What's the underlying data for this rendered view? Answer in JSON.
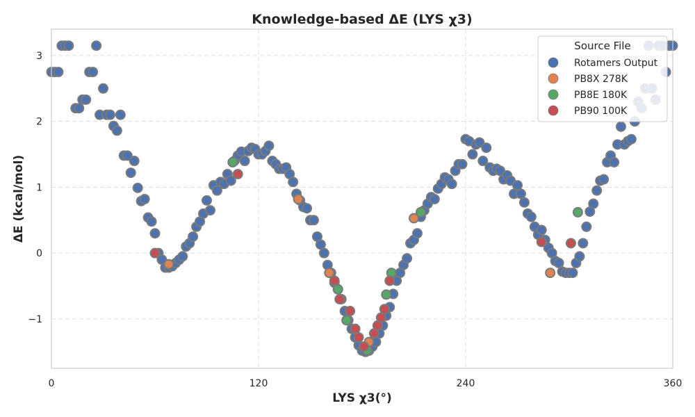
{
  "chart_data": {
    "type": "scatter",
    "title": "Knowledge-based ΔE (LYS χ3)",
    "xlabel": "LYS χ3(°)",
    "ylabel": "ΔE (kcal/mol)",
    "xlim": [
      0,
      360
    ],
    "ylim": [
      -1.75,
      3.4
    ],
    "xticks": [
      0,
      120,
      240,
      360
    ],
    "yticks": [
      -1,
      0,
      1,
      2,
      3
    ],
    "ytick_labels": [
      "−1",
      "0",
      "1",
      "2",
      "3"
    ],
    "grid": true,
    "legend": {
      "title": "Source File",
      "position": "top-right"
    },
    "marker_edge_color": "#7a7a7a",
    "series": [
      {
        "name": "Rotamers Output",
        "color": "#4c72b0",
        "x": [
          0,
          2,
          4,
          6,
          8,
          10,
          14,
          16,
          18,
          20,
          22,
          24,
          26,
          28,
          30,
          32,
          34,
          36,
          38,
          40,
          42,
          44,
          46,
          48,
          50,
          52,
          54,
          56,
          58,
          60,
          62,
          64,
          66,
          68,
          70,
          72,
          74,
          76,
          78,
          80,
          82,
          84,
          86,
          88,
          90,
          92,
          94,
          96,
          98,
          100,
          102,
          104,
          106,
          108,
          110,
          112,
          114,
          116,
          118,
          120,
          122,
          124,
          126,
          128,
          130,
          132,
          134,
          136,
          138,
          140,
          142,
          144,
          146,
          148,
          150,
          152,
          154,
          156,
          158,
          160,
          162,
          164,
          166,
          168,
          170,
          172,
          174,
          176,
          178,
          180,
          182,
          184,
          186,
          188,
          190,
          192,
          194,
          196,
          198,
          200,
          202,
          204,
          206,
          208,
          210,
          212,
          214,
          216,
          218,
          220,
          222,
          224,
          226,
          228,
          230,
          232,
          234,
          236,
          238,
          240,
          242,
          244,
          246,
          248,
          250,
          252,
          254,
          256,
          258,
          260,
          262,
          264,
          266,
          268,
          270,
          272,
          274,
          276,
          278,
          280,
          282,
          284,
          286,
          288,
          290,
          292,
          294,
          296,
          298,
          300,
          302,
          304,
          306,
          308,
          310,
          312,
          314,
          316,
          318,
          320,
          322,
          324,
          326,
          328,
          330,
          332,
          334,
          336,
          338,
          340,
          342,
          344,
          346,
          348,
          350,
          352,
          354,
          356,
          358,
          360
        ],
        "y": [
          2.75,
          2.75,
          2.75,
          3.15,
          3.15,
          3.15,
          2.2,
          2.2,
          2.33,
          2.33,
          2.75,
          2.75,
          3.15,
          2.1,
          2.5,
          2.1,
          2.1,
          1.93,
          1.86,
          2.1,
          1.48,
          1.48,
          1.22,
          1.4,
          0.99,
          0.79,
          0.82,
          0.54,
          0.48,
          0.3,
          0.0,
          -0.1,
          -0.22,
          -0.22,
          -0.2,
          -0.15,
          -0.1,
          -0.05,
          0.1,
          0.15,
          0.25,
          0.4,
          0.48,
          0.6,
          0.8,
          0.65,
          1.03,
          0.95,
          1.08,
          1.05,
          1.2,
          1.1,
          1.4,
          1.48,
          1.54,
          1.4,
          1.55,
          1.6,
          1.58,
          1.5,
          1.5,
          1.55,
          1.63,
          1.4,
          1.35,
          1.28,
          1.28,
          1.3,
          1.2,
          1.08,
          0.9,
          0.8,
          0.7,
          0.68,
          0.5,
          0.5,
          0.25,
          0.13,
          0.0,
          -0.18,
          -0.3,
          -0.45,
          -0.55,
          -0.7,
          -0.88,
          -1.02,
          -1.15,
          -1.28,
          -1.4,
          -1.48,
          -1.5,
          -1.48,
          -1.42,
          -1.35,
          -1.22,
          -1.1,
          -0.95,
          -0.82,
          -0.62,
          -0.42,
          -0.3,
          -0.18,
          -0.08,
          0.15,
          0.2,
          0.3,
          0.55,
          0.65,
          0.75,
          0.85,
          0.82,
          0.98,
          1.05,
          1.15,
          1.12,
          1.05,
          1.25,
          1.35,
          1.35,
          1.73,
          1.7,
          1.5,
          1.65,
          1.68,
          1.4,
          1.6,
          1.3,
          1.25,
          1.28,
          1.25,
          1.12,
          1.18,
          1.1,
          0.9,
          1.03,
          0.9,
          0.77,
          0.6,
          0.55,
          0.4,
          0.28,
          0.35,
          0.2,
          0.08,
          0.0,
          -0.12,
          -0.15,
          -0.28,
          -0.3,
          -0.3,
          -0.3,
          -0.15,
          -0.05,
          0.15,
          0.4,
          0.63,
          0.75,
          0.95,
          1.1,
          1.12,
          1.38,
          1.48,
          1.38,
          1.65,
          1.92,
          1.65,
          1.7,
          1.73,
          2.0,
          2.3,
          2.2,
          2.5,
          3.15,
          2.5,
          2.33,
          3.15,
          3.15,
          2.75,
          3.15,
          3.15
        ]
      },
      {
        "name": "PB8X 278K",
        "color": "#dd8452",
        "x": [
          68,
          143,
          161,
          184,
          210,
          289
        ],
        "y": [
          -0.17,
          0.82,
          -0.3,
          -1.35,
          0.53,
          -0.3
        ]
      },
      {
        "name": "PB8E 180K",
        "color": "#55a868",
        "x": [
          105,
          166,
          171,
          183,
          194,
          197,
          214,
          305
        ],
        "y": [
          1.38,
          -0.55,
          -1.02,
          -1.48,
          -0.63,
          -0.3,
          0.62,
          0.62
        ]
      },
      {
        "name": "PB90 100K",
        "color": "#c44e52",
        "x": [
          60,
          108,
          164,
          167,
          173,
          176,
          178,
          181,
          187,
          189,
          191,
          193,
          196,
          284,
          301
        ],
        "y": [
          0.0,
          1.2,
          -0.42,
          -0.7,
          -0.88,
          -1.15,
          -1.28,
          -1.42,
          -1.22,
          -1.1,
          -0.98,
          -0.85,
          -0.42,
          0.17,
          0.15
        ]
      }
    ]
  }
}
